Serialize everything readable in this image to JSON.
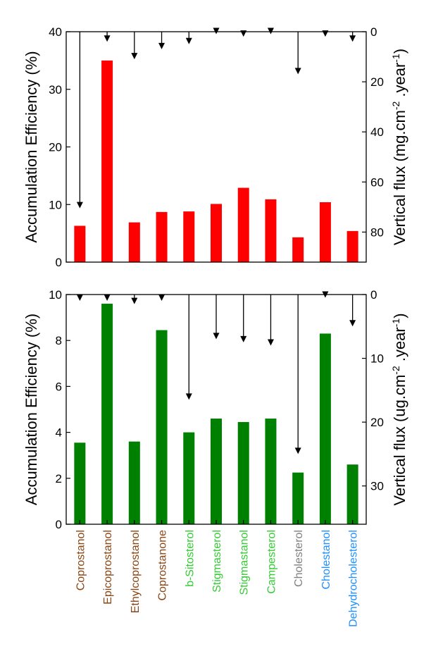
{
  "categories": [
    {
      "label": "Coprostanol",
      "color": "#8B4513"
    },
    {
      "label": "Epicoprostanol",
      "color": "#8B4513"
    },
    {
      "label": "Ethylcoprostanol",
      "color": "#8B4513"
    },
    {
      "label": "Coprostanone",
      "color": "#8B4513"
    },
    {
      "label": "b-Sitosterol",
      "color": "#33CC33"
    },
    {
      "label": "Stigmasterol",
      "color": "#33CC33"
    },
    {
      "label": "Stigmastanol",
      "color": "#33CC33"
    },
    {
      "label": "Campesterol",
      "color": "#33CC33"
    },
    {
      "label": "Cholesterol",
      "color": "#808080"
    },
    {
      "label": "Cholestanol",
      "color": "#1E90FF"
    },
    {
      "label": "Dehydrocholesterol",
      "color": "#1E90FF"
    }
  ],
  "chart_data": [
    {
      "type": "bar",
      "title": "",
      "ylabel": "Accumulation Efficiency (%)",
      "ylim": [
        0,
        40
      ],
      "yticks": [
        0,
        10,
        20,
        30,
        40
      ],
      "bar_color": "#FF0000",
      "values": [
        6.3,
        35.0,
        6.9,
        8.7,
        8.8,
        10.1,
        12.9,
        10.9,
        4.3,
        10.4,
        5.4
      ],
      "secondary": {
        "type": "arrow-drop",
        "label_main": "Vertical flux (mg.cm",
        "label_sup1": "-2",
        "label_mid": " .year",
        "label_sup2": "-1",
        "label_end": ")",
        "ylim_inverted": [
          0,
          92
        ],
        "yticks": [
          0,
          20,
          40,
          60,
          80
        ],
        "values": [
          70.5,
          4,
          11,
          7,
          5,
          1,
          2,
          1,
          17,
          2,
          4
        ]
      }
    },
    {
      "type": "bar",
      "title": "",
      "ylabel": "Accumulation Efficiency (%)",
      "ylim": [
        0,
        10
      ],
      "yticks": [
        0,
        2,
        4,
        6,
        8,
        10
      ],
      "bar_color": "#008000",
      "values": [
        3.55,
        9.6,
        3.6,
        8.45,
        4.0,
        4.6,
        4.45,
        4.6,
        2.25,
        8.3,
        2.6
      ],
      "secondary": {
        "type": "arrow-drop",
        "label_main": "Vertical flux (ug.cm",
        "label_sup1": "-2",
        "label_mid": " .year",
        "label_sup2": "-1",
        "label_end": ")",
        "ylim_inverted": [
          0,
          36
        ],
        "yticks": [
          0,
          10,
          20,
          30
        ],
        "values": [
          1,
          1,
          1.5,
          1,
          16.5,
          7,
          7.5,
          8,
          25,
          0.5,
          5
        ]
      }
    }
  ]
}
